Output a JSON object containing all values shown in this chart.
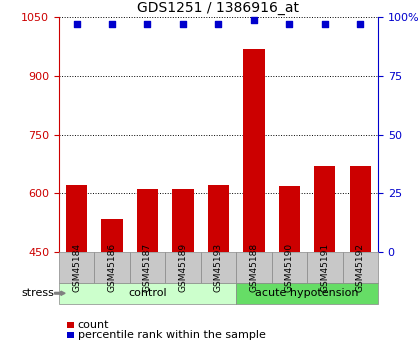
{
  "title": "GDS1251 / 1386916_at",
  "samples": [
    "GSM45184",
    "GSM45186",
    "GSM45187",
    "GSM45189",
    "GSM45193",
    "GSM45188",
    "GSM45190",
    "GSM45191",
    "GSM45192"
  ],
  "counts": [
    620,
    535,
    610,
    610,
    620,
    970,
    618,
    670,
    670
  ],
  "percentiles": [
    97,
    97,
    97,
    97,
    97,
    99,
    97,
    97,
    97
  ],
  "groups": [
    "control",
    "control",
    "control",
    "control",
    "control",
    "acute hypotension",
    "acute hypotension",
    "acute hypotension",
    "acute hypotension"
  ],
  "group_labels": [
    "control",
    "acute hypotension"
  ],
  "group_colors": [
    "#ccffcc",
    "#66dd66"
  ],
  "ylim_left": [
    450,
    1050
  ],
  "ylim_right": [
    0,
    100
  ],
  "yticks_left": [
    450,
    600,
    750,
    900,
    1050
  ],
  "yticks_right": [
    0,
    25,
    50,
    75,
    100
  ],
  "bar_color": "#cc0000",
  "dot_color": "#0000cc",
  "bg_color": "#c8c8c8",
  "grid_color": "#000000",
  "stress_label": "stress",
  "legend_count": "count",
  "legend_pct": "percentile rank within the sample",
  "figsize": [
    4.2,
    3.45
  ],
  "dpi": 100
}
